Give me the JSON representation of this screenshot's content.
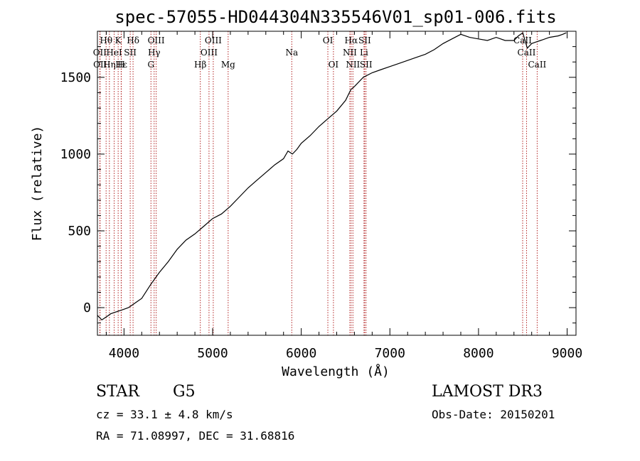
{
  "chart_data": {
    "type": "line",
    "title": "spec-57055-HD044304N335546V01_sp01-006.fits",
    "xlabel": "Wavelength (Å)",
    "ylabel": "Flux (relative)",
    "xlim": [
      3700,
      9100
    ],
    "ylim": [
      -180,
      1800
    ],
    "x_ticks": [
      {
        "value": 4000,
        "label": "4000"
      },
      {
        "value": 5000,
        "label": "5000"
      },
      {
        "value": 6000,
        "label": "6000"
      },
      {
        "value": 7000,
        "label": "7000"
      },
      {
        "value": 8000,
        "label": "8000"
      },
      {
        "value": 9000,
        "label": "9000"
      }
    ],
    "y_ticks": [
      {
        "value": 0,
        "label": "0"
      },
      {
        "value": 500,
        "label": "500"
      },
      {
        "value": 1000,
        "label": "1000"
      },
      {
        "value": 1500,
        "label": "1500"
      }
    ],
    "series": [
      {
        "name": "spectrum",
        "x": [
          3700,
          3750,
          3800,
          3850,
          3900,
          3950,
          4000,
          4050,
          4100,
          4150,
          4200,
          4300,
          4400,
          4500,
          4600,
          4700,
          4800,
          4900,
          5000,
          5100,
          5200,
          5300,
          5400,
          5500,
          5600,
          5700,
          5800,
          5850,
          5900,
          5950,
          6000,
          6100,
          6200,
          6300,
          6400,
          6500,
          6560,
          6600,
          6700,
          6800,
          6900,
          7000,
          7100,
          7200,
          7300,
          7400,
          7500,
          7600,
          7700,
          7800,
          7900,
          8000,
          8100,
          8200,
          8300,
          8400,
          8450,
          8500,
          8550,
          8600,
          8650,
          8700,
          8800,
          8900,
          8950,
          8990
        ],
        "y": [
          -50,
          -80,
          -60,
          -40,
          -30,
          -20,
          -10,
          0,
          20,
          40,
          60,
          150,
          230,
          300,
          380,
          440,
          480,
          530,
          580,
          610,
          660,
          720,
          780,
          830,
          880,
          930,
          970,
          1020,
          1000,
          1030,
          1070,
          1120,
          1180,
          1230,
          1280,
          1350,
          1420,
          1440,
          1500,
          1530,
          1550,
          1570,
          1590,
          1610,
          1630,
          1650,
          1680,
          1720,
          1750,
          1780,
          1760,
          1750,
          1740,
          1760,
          1740,
          1740,
          1770,
          1790,
          1690,
          1720,
          1730,
          1740,
          1760,
          1770,
          1780,
          1790
        ]
      }
    ],
    "lines": [
      {
        "label": "Hθ",
        "x": 3798,
        "row": 1
      },
      {
        "label": "OII",
        "x": 3727,
        "row": 2
      },
      {
        "label": "OII",
        "x": 3730,
        "row": 3
      },
      {
        "label": "K",
        "x": 3934,
        "row": 1
      },
      {
        "label": "HeI",
        "x": 3889,
        "row": 2
      },
      {
        "label": "Hε",
        "x": 3970,
        "row": 3
      },
      {
        "label": "H",
        "x": 3968,
        "row": 3
      },
      {
        "label": "Hη",
        "x": 3835,
        "row": 3
      },
      {
        "label": "SII",
        "x": 4070,
        "row": 2
      },
      {
        "label": "Hδ",
        "x": 4102,
        "row": 1
      },
      {
        "label": "OIII",
        "x": 4363,
        "row": 1
      },
      {
        "label": "Hγ",
        "x": 4340,
        "row": 2
      },
      {
        "label": "G",
        "x": 4304,
        "row": 3
      },
      {
        "label": "Hβ",
        "x": 4861,
        "row": 3
      },
      {
        "label": "OIII",
        "x": 5007,
        "row": 1
      },
      {
        "label": "OIII",
        "x": 4959,
        "row": 2
      },
      {
        "label": "Mg",
        "x": 5175,
        "row": 3
      },
      {
        "label": "Na",
        "x": 5893,
        "row": 2
      },
      {
        "label": "OI",
        "x": 6300,
        "row": 1
      },
      {
        "label": "OI",
        "x": 6363,
        "row": 3
      },
      {
        "label": "Hα",
        "x": 6563,
        "row": 1
      },
      {
        "label": "NII",
        "x": 6548,
        "row": 2
      },
      {
        "label": "NII",
        "x": 6583,
        "row": 3
      },
      {
        "label": "SII",
        "x": 6716,
        "row": 1
      },
      {
        "label": "Li",
        "x": 6708,
        "row": 2
      },
      {
        "label": "SII",
        "x": 6731,
        "row": 3
      },
      {
        "label": "CaII",
        "x": 8498,
        "row": 1
      },
      {
        "label": "CaII",
        "x": 8542,
        "row": 2
      },
      {
        "label": "CaII",
        "x": 8662,
        "row": 3
      }
    ]
  },
  "info": {
    "obj_class": "STAR",
    "subclass": "G5",
    "survey": "LAMOST DR3",
    "cz": "cz = 33.1 ± 4.8 km/s",
    "obs_date": "Obs-Date: 20150201",
    "radec": "RA =  71.08997, DEC =  31.68816"
  }
}
